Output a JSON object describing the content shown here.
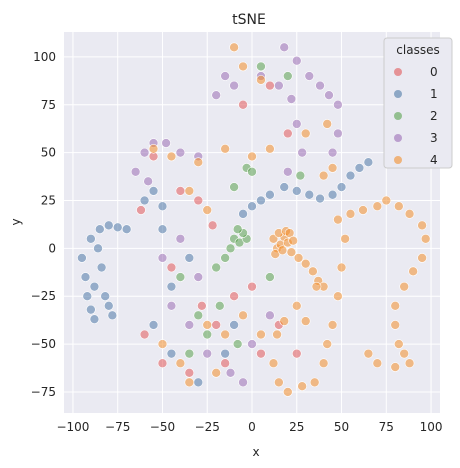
{
  "chart_data": {
    "type": "scatter",
    "title": "tSNE",
    "xlabel": "x",
    "ylabel": "y",
    "xlim": [
      -105,
      105
    ],
    "ylim": [
      -86,
      113
    ],
    "xticks": [
      -100,
      -75,
      -50,
      -25,
      0,
      25,
      50,
      75,
      100
    ],
    "yticks": [
      -75,
      -50,
      -25,
      0,
      25,
      50,
      75,
      100
    ],
    "grid": true,
    "legend": {
      "title": "classes",
      "placement": "top-right",
      "entries": [
        "0",
        "1",
        "2",
        "3",
        "4"
      ]
    },
    "colors": [
      "#e15759",
      "#4e79a7",
      "#59a14f",
      "#9b6db5",
      "#f28e2b"
    ],
    "series": [
      {
        "name": "0",
        "points": [
          [
            -55,
            48
          ],
          [
            -40,
            30
          ],
          [
            -30,
            25
          ],
          [
            -22,
            12
          ],
          [
            -60,
            -45
          ],
          [
            -50,
            -60
          ],
          [
            -35,
            -65
          ],
          [
            -20,
            -40
          ],
          [
            -10,
            -25
          ],
          [
            5,
            -55
          ],
          [
            15,
            -40
          ],
          [
            -5,
            75
          ],
          [
            10,
            85
          ],
          [
            20,
            60
          ],
          [
            -45,
            -10
          ],
          [
            -28,
            -30
          ],
          [
            -15,
            -60
          ],
          [
            0,
            -20
          ],
          [
            25,
            -55
          ],
          [
            -62,
            20
          ]
        ]
      },
      {
        "name": "1",
        "points": [
          [
            -95,
            -5
          ],
          [
            -93,
            -15
          ],
          [
            -92,
            -25
          ],
          [
            -90,
            -32
          ],
          [
            -88,
            -37
          ],
          [
            -90,
            5
          ],
          [
            -85,
            10
          ],
          [
            -80,
            12
          ],
          [
            -75,
            11
          ],
          [
            -70,
            10
          ],
          [
            -88,
            -20
          ],
          [
            -82,
            -25
          ],
          [
            -80,
            -30
          ],
          [
            -78,
            -35
          ],
          [
            -84,
            -10
          ],
          [
            -86,
            0
          ],
          [
            -5,
            18
          ],
          [
            0,
            22
          ],
          [
            5,
            25
          ],
          [
            10,
            28
          ],
          [
            18,
            32
          ],
          [
            25,
            30
          ],
          [
            32,
            28
          ],
          [
            38,
            26
          ],
          [
            45,
            28
          ],
          [
            50,
            32
          ],
          [
            55,
            38
          ],
          [
            60,
            42
          ],
          [
            65,
            45
          ],
          [
            -60,
            25
          ],
          [
            -55,
            30
          ],
          [
            -50,
            22
          ],
          [
            -55,
            -40
          ],
          [
            -45,
            -55
          ],
          [
            -30,
            -70
          ],
          [
            -15,
            -55
          ],
          [
            -10,
            -40
          ],
          [
            -45,
            -20
          ],
          [
            -35,
            -5
          ],
          [
            -50,
            10
          ]
        ]
      },
      {
        "name": "2",
        "points": [
          [
            -10,
            5
          ],
          [
            -7,
            3
          ],
          [
            -3,
            5
          ],
          [
            -5,
            8
          ],
          [
            -8,
            10
          ],
          [
            -12,
            0
          ],
          [
            -15,
            -5
          ],
          [
            -10,
            32
          ],
          [
            -3,
            42
          ],
          [
            0,
            40
          ],
          [
            5,
            95
          ],
          [
            20,
            90
          ],
          [
            27,
            38
          ],
          [
            -40,
            -15
          ],
          [
            -30,
            -35
          ],
          [
            -20,
            -10
          ],
          [
            -25,
            -45
          ],
          [
            -8,
            -50
          ],
          [
            10,
            -15
          ],
          [
            -18,
            -30
          ],
          [
            -35,
            -55
          ]
        ]
      },
      {
        "name": "3",
        "points": [
          [
            -60,
            50
          ],
          [
            -55,
            55
          ],
          [
            -48,
            55
          ],
          [
            -40,
            50
          ],
          [
            -30,
            48
          ],
          [
            -65,
            40
          ],
          [
            -58,
            35
          ],
          [
            -20,
            80
          ],
          [
            -15,
            90
          ],
          [
            -10,
            85
          ],
          [
            5,
            90
          ],
          [
            15,
            85
          ],
          [
            22,
            78
          ],
          [
            25,
            65
          ],
          [
            28,
            50
          ],
          [
            20,
            40
          ],
          [
            18,
            105
          ],
          [
            25,
            98
          ],
          [
            32,
            90
          ],
          [
            38,
            85
          ],
          [
            43,
            80
          ],
          [
            48,
            75
          ],
          [
            48,
            60
          ],
          [
            45,
            50
          ],
          [
            -45,
            -30
          ],
          [
            -35,
            -40
          ],
          [
            -25,
            -55
          ],
          [
            -12,
            -65
          ],
          [
            0,
            -50
          ],
          [
            10,
            -35
          ],
          [
            -5,
            -70
          ],
          [
            -30,
            -15
          ],
          [
            -40,
            5
          ],
          [
            -50,
            -5
          ]
        ]
      },
      {
        "name": "4",
        "points": [
          [
            12,
            5
          ],
          [
            14,
            0
          ],
          [
            16,
            2
          ],
          [
            18,
            6
          ],
          [
            20,
            3
          ],
          [
            22,
            -2
          ],
          [
            15,
            8
          ],
          [
            19,
            9
          ],
          [
            13,
            -3
          ],
          [
            21,
            8
          ],
          [
            17,
            -1
          ],
          [
            23,
            4
          ],
          [
            26,
            -5
          ],
          [
            30,
            -8
          ],
          [
            34,
            -12
          ],
          [
            37,
            -17
          ],
          [
            40,
            -20
          ],
          [
            36,
            -20
          ],
          [
            48,
            15
          ],
          [
            55,
            18
          ],
          [
            62,
            20
          ],
          [
            70,
            22
          ],
          [
            75,
            25
          ],
          [
            82,
            22
          ],
          [
            88,
            18
          ],
          [
            95,
            12
          ],
          [
            97,
            5
          ],
          [
            95,
            -5
          ],
          [
            90,
            -12
          ],
          [
            85,
            -20
          ],
          [
            80,
            -30
          ],
          [
            80,
            -40
          ],
          [
            82,
            -50
          ],
          [
            85,
            -55
          ],
          [
            88,
            -60
          ],
          [
            80,
            -62
          ],
          [
            70,
            -60
          ],
          [
            65,
            -55
          ],
          [
            52,
            5
          ],
          [
            50,
            -10
          ],
          [
            48,
            -25
          ],
          [
            45,
            -40
          ],
          [
            42,
            -50
          ],
          [
            40,
            -60
          ],
          [
            35,
            -70
          ],
          [
            28,
            -72
          ],
          [
            20,
            -75
          ],
          [
            15,
            -70
          ],
          [
            12,
            -60
          ],
          [
            14,
            -45
          ],
          [
            18,
            -38
          ],
          [
            25,
            -30
          ],
          [
            30,
            -38
          ],
          [
            -55,
            52
          ],
          [
            -45,
            48
          ],
          [
            -30,
            45
          ],
          [
            -15,
            52
          ],
          [
            0,
            48
          ],
          [
            10,
            52
          ],
          [
            -35,
            30
          ],
          [
            -25,
            20
          ],
          [
            -50,
            -50
          ],
          [
            -40,
            -60
          ],
          [
            -25,
            -40
          ],
          [
            -15,
            -45
          ],
          [
            -5,
            -35
          ],
          [
            5,
            -45
          ],
          [
            -35,
            -70
          ],
          [
            -20,
            -65
          ],
          [
            -10,
            105
          ],
          [
            -5,
            95
          ],
          [
            5,
            88
          ],
          [
            30,
            60
          ],
          [
            42,
            65
          ],
          [
            45,
            42
          ],
          [
            40,
            38
          ]
        ]
      }
    ]
  }
}
